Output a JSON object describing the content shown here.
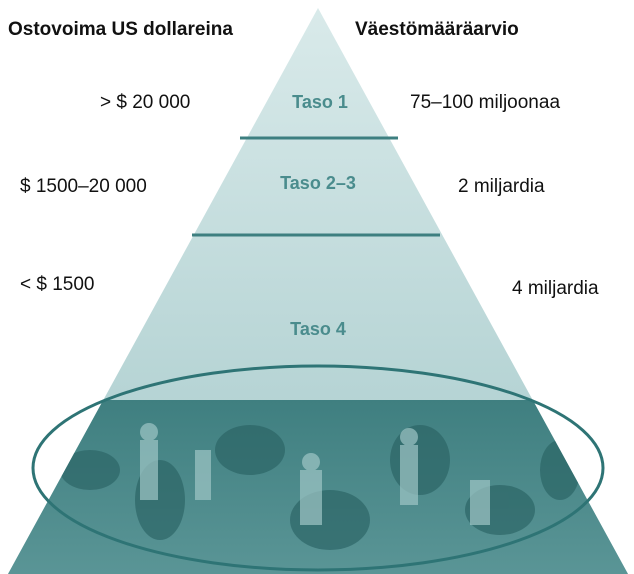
{
  "header": {
    "left": "Ostovoima US dollareina",
    "right": "Väestömääräarvio"
  },
  "tiers": [
    {
      "label": "Taso 1",
      "income": "> $ 20 000",
      "population": "75–100 miljoonaa"
    },
    {
      "label": "Taso 2–3",
      "income": "$ 1500–20 000",
      "population": "2 miljardia"
    },
    {
      "label": "Taso 4",
      "income": "< $ 1500",
      "population": "4 miljardia"
    }
  ]
}
